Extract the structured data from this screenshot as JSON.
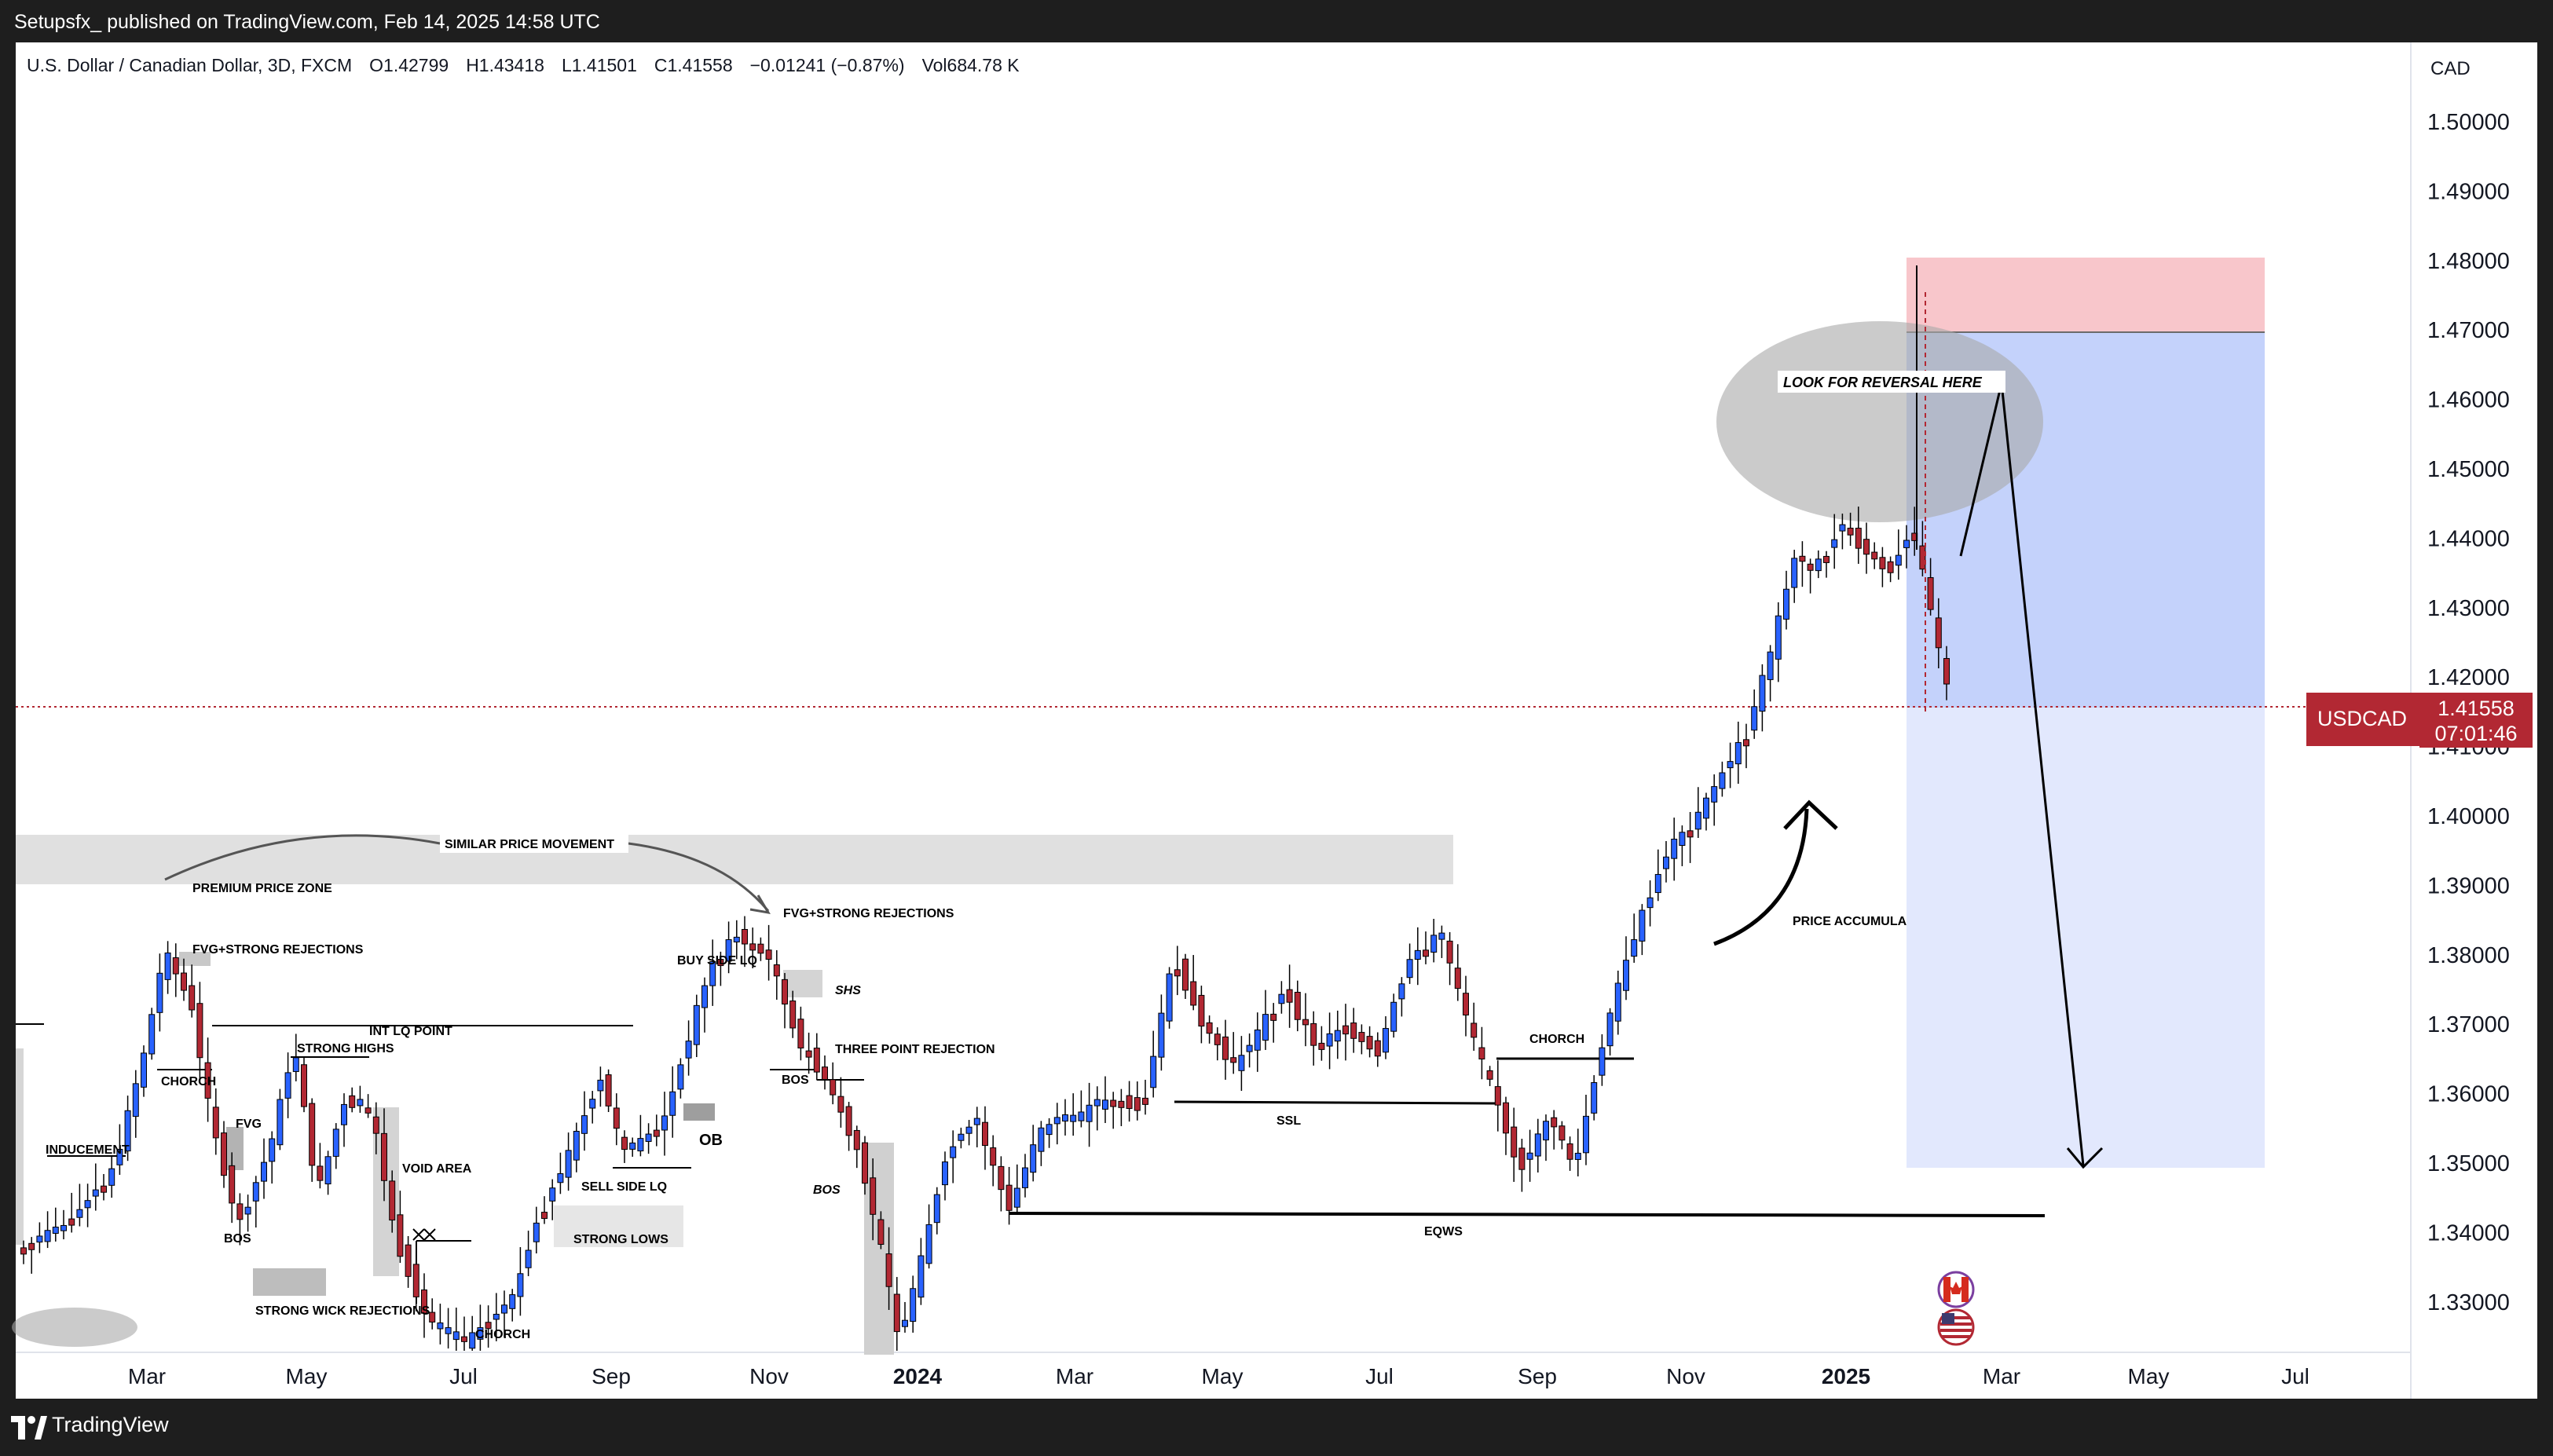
{
  "publish_info": "Setupsfx_ published on TradingView.com, Feb 14, 2025 14:58 UTC",
  "legend": {
    "pair": "U.S. Dollar / Canadian Dollar, 3D, FXCM",
    "open": "O1.42799",
    "high": "H1.43418",
    "low": "L1.41501",
    "close": "C1.41558",
    "change": "−0.01241 (−0.87%)",
    "volume": "Vol684.78 K"
  },
  "currency_label": "CAD",
  "price_axis": [
    "1.50000",
    "1.49000",
    "1.48000",
    "1.47000",
    "1.46000",
    "1.45000",
    "1.44000",
    "1.43000",
    "1.42000",
    "1.41000",
    "1.40000",
    "1.39000",
    "1.38000",
    "1.37000",
    "1.36000",
    "1.35000",
    "1.34000",
    "1.33000"
  ],
  "time_axis": [
    "Mar",
    "May",
    "Jul",
    "Sep",
    "Nov",
    "2024",
    "Mar",
    "May",
    "Jul",
    "Sep",
    "Nov",
    "2025",
    "Mar",
    "May",
    "Jul"
  ],
  "last_price": {
    "symbol": "USDCAD",
    "price": "1.41558",
    "countdown": "07:01:46",
    "color": "#b22833"
  },
  "annotations": {
    "look_for_reversal": "LOOK FOR REVERSAL HERE",
    "similar_price_movement": "SIMILAR PRICE MOVEMENT",
    "premium_price_zone": "PREMIUM PRICE ZONE",
    "fvg_strong_rejections_1": "FVG+STRONG REJECTIONS",
    "fvg_strong_rejections_2": "FVG+STRONG REJECTIONS",
    "int_lq_point": "INT LQ POINT",
    "strong_highs": "STRONG HIGHS",
    "chorch_1": "CHORCH",
    "fvg": "FVG",
    "inducement": "INDUCEMENT",
    "void_area": "VOID AREA",
    "bos_1": "BOS",
    "strong_wick_rejections": "STRONG WICK REJECTIONS",
    "chorch_2": "CHORCH",
    "buy_side_lq": "BUY SIDE LQ",
    "ob": "OB",
    "sell_side_lq": "SELL SIDE LQ",
    "strong_lows": "STRONG LOWS",
    "shs": "SHS",
    "three_point_rejection": "THREE POINT REJECTION",
    "bos_2": "BOS",
    "bos_3": "BOS",
    "ssl": "SSL",
    "chorch_3": "CHORCH",
    "eqws": "EQWS",
    "price_accumula": "PRICE ACCUMULA"
  },
  "colors": {
    "bull": "#2962ff",
    "bear": "#b22833",
    "stop_zone": "#f8c6cb",
    "target_zone_upper": "#c4d2fb",
    "target_zone_lower": "#e2e8fd"
  },
  "branding": {
    "name": "TradingView"
  },
  "icons": [
    "canada-flag-icon",
    "us-flag-icon",
    "tradingview-logo-icon"
  ]
}
